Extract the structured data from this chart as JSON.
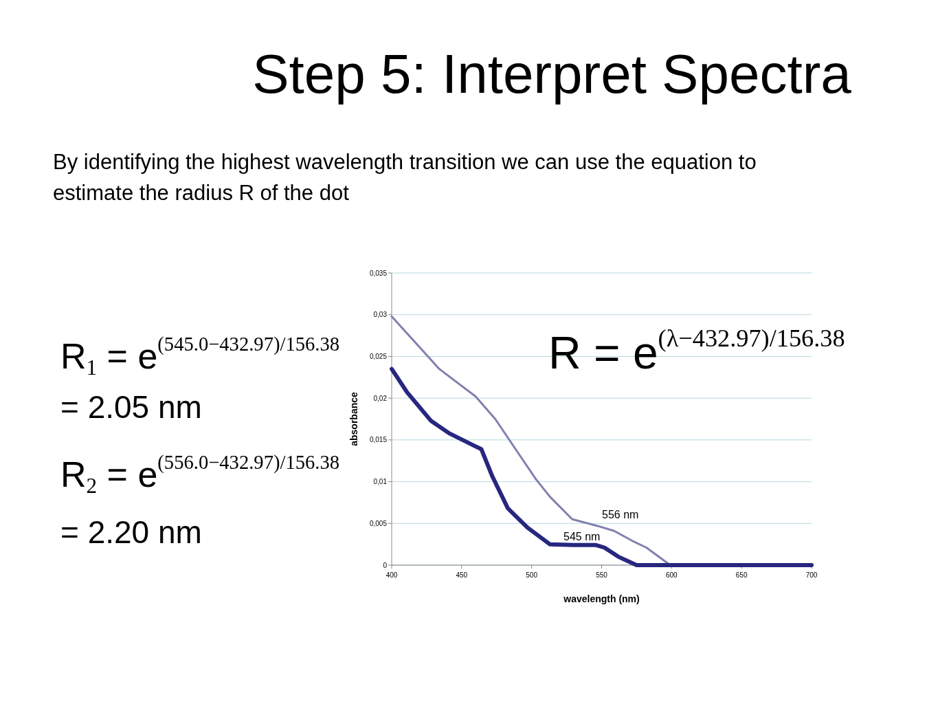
{
  "chart_data": {
    "type": "line",
    "title": "Step 5: Interpret Spectra",
    "subtitle": "By identifying the highest wavelength transition we can use the equation to estimate the radius R of the dot",
    "xlabel": "wavelength (nm)",
    "ylabel": "absorbance",
    "xlim": [
      400,
      700
    ],
    "xticks": [
      400,
      450,
      500,
      550,
      600,
      650,
      700
    ],
    "ylim": [
      0,
      0.035
    ],
    "yticks": [
      {
        "value": 0,
        "label": "0"
      },
      {
        "value": 0.005,
        "label": "0,005"
      },
      {
        "value": 0.01,
        "label": "0,01"
      },
      {
        "value": 0.015,
        "label": "0,015"
      },
      {
        "value": 0.02,
        "label": "0,02"
      },
      {
        "value": 0.025,
        "label": "0,025"
      },
      {
        "value": 0.03,
        "label": "0,03"
      },
      {
        "value": 0.035,
        "label": "0,035"
      }
    ],
    "grid": "y",
    "marker": "none",
    "line_style": "solid",
    "series": [
      {
        "color": "#8080b0",
        "x": [
          400,
          434,
          460,
          474,
          503,
          513,
          529,
          547,
          559,
          572,
          582,
          599,
          700
        ],
        "values": [
          0.0298,
          0.0235,
          0.0202,
          0.0175,
          0.0103,
          0.0082,
          0.0055,
          0.0047,
          0.0041,
          0.0029,
          0.0021,
          0,
          0
        ]
      },
      {
        "color": "#27277f",
        "x": [
          400,
          411,
          428,
          441,
          459,
          464,
          472,
          483,
          497,
          513,
          530,
          546,
          552,
          562,
          575,
          700
        ],
        "values": [
          0.0235,
          0.0207,
          0.0173,
          0.0158,
          0.0143,
          0.0139,
          0.0106,
          0.0068,
          0.0045,
          0.0025,
          0.0024,
          0.0024,
          0.0021,
          0.001,
          0,
          0
        ]
      }
    ],
    "annotations": [
      "R$_{1}$ = e$^{(545.0−432.97)/156.38}$",
      "= 2.05 nm",
      "R$_{2}$ = e$^{(556.0−432.97)/156.38}$",
      "= 2.20 nm",
      "R = e$^{(λ−432.97)/156.38}$",
      "556 nm",
      "545 nm"
    ]
  }
}
